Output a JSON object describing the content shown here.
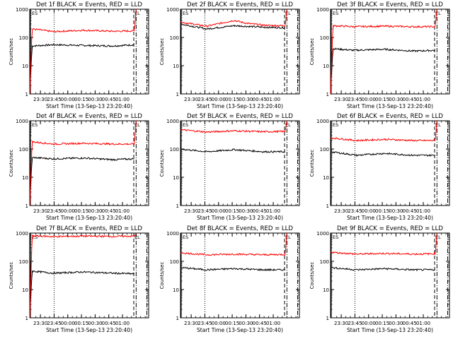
{
  "chart_data": [
    {
      "type": "line",
      "title": "Det 1f BLACK = Events, RED = LLD",
      "xlabel": "Start Time (13-Sep-13 23:20:40)",
      "ylabel": "Counts/sec",
      "xticks": [
        "23:30",
        "23:45",
        "00:00",
        "00:15",
        "00:30",
        "00:45",
        "01:00"
      ],
      "yticks": [
        "1",
        "10",
        "100",
        "1000"
      ],
      "scale": "log",
      "ylim": [
        1,
        1000
      ],
      "markers": [
        "ES",
        "EL"
      ],
      "series": [
        {
          "color": "#000000",
          "values_by_frac": [
            [
              0.0,
              1
            ],
            [
              0.02,
              50
            ],
            [
              0.2,
              55
            ],
            [
              0.45,
              52
            ],
            [
              0.7,
              50
            ],
            [
              0.88,
              55
            ]
          ]
        },
        {
          "color": "#ff0000",
          "values_by_frac": [
            [
              0.0,
              1
            ],
            [
              0.02,
              200
            ],
            [
              0.2,
              160
            ],
            [
              0.45,
              180
            ],
            [
              0.7,
              165
            ],
            [
              0.88,
              170
            ],
            [
              0.895,
              1000
            ]
          ]
        }
      ]
    },
    {
      "type": "line",
      "title": "Det 2f BLACK = Events, RED = LLD",
      "xlabel": "Start Time (13-Sep-13 23:20:40)",
      "ylabel": "Counts/sec",
      "xticks": [
        "23:30",
        "23:45",
        "00:00",
        "00:15",
        "00:30",
        "00:45",
        "01:00"
      ],
      "yticks": [
        "1",
        "10",
        "100",
        "1000"
      ],
      "scale": "log",
      "ylim": [
        1,
        1000
      ],
      "markers": [
        "ES",
        "EL"
      ],
      "series": [
        {
          "color": "#000000",
          "values_by_frac": [
            [
              0.0,
              300
            ],
            [
              0.22,
              200
            ],
            [
              0.45,
              260
            ],
            [
              0.7,
              230
            ],
            [
              0.88,
              220
            ]
          ]
        },
        {
          "color": "#ff0000",
          "values_by_frac": [
            [
              0.0,
              350
            ],
            [
              0.22,
              250
            ],
            [
              0.45,
              400
            ],
            [
              0.55,
              320
            ],
            [
              0.7,
              270
            ],
            [
              0.88,
              260
            ],
            [
              0.895,
              1000
            ]
          ]
        }
      ]
    },
    {
      "type": "line",
      "title": "Det 3f BLACK = Events, RED = LLD",
      "xlabel": "Start Time (13-Sep-13 23:20:40)",
      "ylabel": "Counts/sec",
      "xticks": [
        "23:30",
        "23:45",
        "00:00",
        "00:15",
        "00:30",
        "00:45",
        "01:00"
      ],
      "yticks": [
        "1",
        "10",
        "100",
        "1000"
      ],
      "scale": "log",
      "ylim": [
        1,
        1000
      ],
      "markers": [
        "ES",
        "EL"
      ],
      "series": [
        {
          "color": "#000000",
          "values_by_frac": [
            [
              0.0,
              1
            ],
            [
              0.02,
              40
            ],
            [
              0.2,
              35
            ],
            [
              0.45,
              38
            ],
            [
              0.7,
              33
            ],
            [
              0.88,
              35
            ]
          ]
        },
        {
          "color": "#ff0000",
          "values_by_frac": [
            [
              0.0,
              1
            ],
            [
              0.02,
              260
            ],
            [
              0.2,
              240
            ],
            [
              0.45,
              250
            ],
            [
              0.7,
              240
            ],
            [
              0.88,
              240
            ],
            [
              0.895,
              1000
            ]
          ]
        }
      ]
    },
    {
      "type": "line",
      "title": "Det 4f BLACK = Events, RED = LLD",
      "xlabel": "Start Time (13-Sep-13 23:20:40)",
      "ylabel": "Counts/sec",
      "xticks": [
        "23:30",
        "23:45",
        "00:00",
        "00:15",
        "00:30",
        "00:45",
        "01:00"
      ],
      "yticks": [
        "1",
        "10",
        "100",
        "1000"
      ],
      "scale": "log",
      "ylim": [
        1,
        1000
      ],
      "markers": [
        "ES",
        "EL"
      ],
      "series": [
        {
          "color": "#000000",
          "values_by_frac": [
            [
              0.0,
              1
            ],
            [
              0.02,
              50
            ],
            [
              0.2,
              45
            ],
            [
              0.45,
              48
            ],
            [
              0.7,
              42
            ],
            [
              0.88,
              45
            ]
          ]
        },
        {
          "color": "#ff0000",
          "values_by_frac": [
            [
              0.0,
              1
            ],
            [
              0.02,
              180
            ],
            [
              0.2,
              150
            ],
            [
              0.45,
              160
            ],
            [
              0.7,
              150
            ],
            [
              0.88,
              150
            ],
            [
              0.895,
              1000
            ]
          ]
        }
      ]
    },
    {
      "type": "line",
      "title": "Det 5f BLACK = Events, RED = LLD",
      "xlabel": "Start Time (13-Sep-13 23:20:40)",
      "ylabel": "Counts/sec",
      "xticks": [
        "23:30",
        "23:45",
        "00:00",
        "00:15",
        "00:30",
        "00:45",
        "01:00"
      ],
      "yticks": [
        "1",
        "10",
        "100",
        "1000"
      ],
      "scale": "log",
      "ylim": [
        1,
        1000
      ],
      "markers": [
        "ES",
        "EL"
      ],
      "series": [
        {
          "color": "#000000",
          "values_by_frac": [
            [
              0.0,
              100
            ],
            [
              0.22,
              80
            ],
            [
              0.45,
              95
            ],
            [
              0.7,
              80
            ],
            [
              0.88,
              80
            ]
          ]
        },
        {
          "color": "#ff0000",
          "values_by_frac": [
            [
              0.0,
              480
            ],
            [
              0.22,
              400
            ],
            [
              0.45,
              440
            ],
            [
              0.7,
              410
            ],
            [
              0.88,
              420
            ],
            [
              0.895,
              1000
            ]
          ]
        }
      ]
    },
    {
      "type": "line",
      "title": "Det 6f BLACK = Events, RED = LLD",
      "xlabel": "Start Time (13-Sep-13 23:20:40)",
      "ylabel": "Counts/sec",
      "xticks": [
        "23:30",
        "23:45",
        "00:00",
        "00:15",
        "00:30",
        "00:45",
        "01:00"
      ],
      "yticks": [
        "1",
        "10",
        "100",
        "1000"
      ],
      "scale": "log",
      "ylim": [
        1,
        1000
      ],
      "markers": [
        "ES",
        "EL"
      ],
      "series": [
        {
          "color": "#000000",
          "values_by_frac": [
            [
              0.0,
              80
            ],
            [
              0.22,
              60
            ],
            [
              0.45,
              70
            ],
            [
              0.7,
              60
            ],
            [
              0.88,
              60
            ]
          ]
        },
        {
          "color": "#ff0000",
          "values_by_frac": [
            [
              0.0,
              250
            ],
            [
              0.22,
              200
            ],
            [
              0.45,
              220
            ],
            [
              0.7,
              200
            ],
            [
              0.88,
              200
            ],
            [
              0.895,
              1000
            ]
          ]
        }
      ]
    },
    {
      "type": "line",
      "title": "Det 7f BLACK = Events, RED = LLD",
      "xlabel": "Start Time (13-Sep-13 23:20:40)",
      "ylabel": "Counts/sec",
      "xticks": [
        "23:30",
        "23:45",
        "00:00",
        "00:15",
        "00:30",
        "00:45",
        "01:00"
      ],
      "yticks": [
        "1",
        "10",
        "100",
        "1000"
      ],
      "scale": "log",
      "ylim": [
        1,
        1000
      ],
      "markers": [
        "ES",
        "EL"
      ],
      "series": [
        {
          "color": "#000000",
          "values_by_frac": [
            [
              0.0,
              1
            ],
            [
              0.02,
              45
            ],
            [
              0.2,
              38
            ],
            [
              0.45,
              42
            ],
            [
              0.7,
              38
            ],
            [
              0.88,
              36
            ]
          ]
        },
        {
          "color": "#ff0000",
          "values_by_frac": [
            [
              0.0,
              1
            ],
            [
              0.02,
              800
            ],
            [
              0.2,
              750
            ],
            [
              0.45,
              780
            ],
            [
              0.7,
              760
            ],
            [
              0.88,
              780
            ],
            [
              0.895,
              1000
            ]
          ]
        }
      ]
    },
    {
      "type": "line",
      "title": "Det 8f BLACK = Events, RED = LLD",
      "xlabel": "Start Time (13-Sep-13 23:20:40)",
      "ylabel": "Counts/sec",
      "xticks": [
        "23:30",
        "23:45",
        "00:00",
        "00:15",
        "00:30",
        "00:45",
        "01:00"
      ],
      "yticks": [
        "1",
        "10",
        "100",
        "1000"
      ],
      "scale": "log",
      "ylim": [
        1,
        1000
      ],
      "markers": [
        "ES",
        "EL"
      ],
      "series": [
        {
          "color": "#000000",
          "values_by_frac": [
            [
              0.0,
              60
            ],
            [
              0.22,
              50
            ],
            [
              0.45,
              55
            ],
            [
              0.7,
              50
            ],
            [
              0.88,
              50
            ]
          ]
        },
        {
          "color": "#ff0000",
          "values_by_frac": [
            [
              0.0,
              200
            ],
            [
              0.22,
              170
            ],
            [
              0.45,
              180
            ],
            [
              0.7,
              170
            ],
            [
              0.88,
              175
            ],
            [
              0.895,
              1000
            ]
          ]
        }
      ]
    },
    {
      "type": "line",
      "title": "Det 9f BLACK = Events, RED = LLD",
      "xlabel": "Start Time (13-Sep-13 23:20:40)",
      "ylabel": "Counts/sec",
      "xticks": [
        "23:30",
        "23:45",
        "00:00",
        "00:15",
        "00:30",
        "00:45",
        "01:00"
      ],
      "yticks": [
        "1",
        "10",
        "100",
        "1000"
      ],
      "scale": "log",
      "ylim": [
        1,
        1000
      ],
      "markers": [
        "ES",
        "EL"
      ],
      "series": [
        {
          "color": "#000000",
          "values_by_frac": [
            [
              0.0,
              60
            ],
            [
              0.22,
              50
            ],
            [
              0.45,
              55
            ],
            [
              0.7,
              50
            ],
            [
              0.88,
              50
            ]
          ]
        },
        {
          "color": "#ff0000",
          "values_by_frac": [
            [
              0.0,
              210
            ],
            [
              0.22,
              180
            ],
            [
              0.45,
              190
            ],
            [
              0.7,
              180
            ],
            [
              0.88,
              185
            ],
            [
              0.895,
              1000
            ]
          ]
        }
      ]
    }
  ]
}
